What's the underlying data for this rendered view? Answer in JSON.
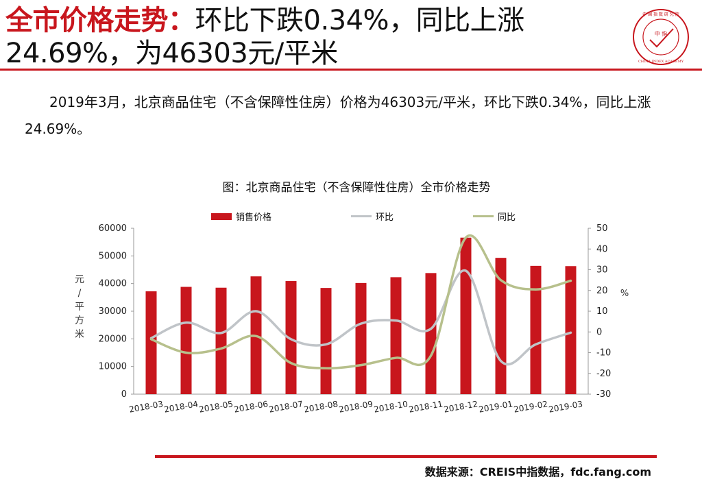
{
  "header": {
    "title_highlight": "全市价格走势：",
    "title_line1_rest": "环比下跌0.34%，同比上涨",
    "title_line2": "24.69%，为46303元/平米"
  },
  "logo": {
    "label": "CHINA INDEX ACADEMY",
    "center_text": "中 指",
    "top_text": "中 国 指 数 研 究 院"
  },
  "summary": {
    "text": "2019年3月，北京商品住宅（不含保障性住房）价格为46303元/平米，环比下跌0.34%，同比上涨24.69%。"
  },
  "source": {
    "text": "数据来源：CREIS中指数据，fdc.fang.com"
  },
  "chart_data": {
    "type": "bar",
    "title": "图：北京商品住宅（不含保障性住房）全市价格走势",
    "categories": [
      "2018-03",
      "2018-04",
      "2018-05",
      "2018-06",
      "2018-07",
      "2018-08",
      "2018-09",
      "2018-10",
      "2018-11",
      "2018-12",
      "2019-01",
      "2019-02",
      "2019-03"
    ],
    "series": [
      {
        "name": "销售价格",
        "type": "bar",
        "axis": "left",
        "color": "#c8161d",
        "values": [
          37200,
          38800,
          38500,
          42600,
          40900,
          38400,
          40200,
          42300,
          43800,
          56600,
          49300,
          46400,
          46303
        ]
      },
      {
        "name": "环比",
        "type": "line",
        "axis": "right",
        "color": "#c0c4c8",
        "values": [
          -3,
          4.5,
          -0.5,
          10,
          -3.5,
          -6,
          4,
          5.5,
          1.5,
          29.5,
          -14,
          -6,
          -0.34
        ]
      },
      {
        "name": "同比",
        "type": "line",
        "axis": "right",
        "color": "#b7c08c",
        "values": [
          -3.5,
          -10,
          -8,
          -2,
          -15,
          -17.5,
          -16,
          -12.5,
          -11.5,
          45.5,
          25,
          20.5,
          24.69
        ]
      }
    ],
    "ylabel_left": "元/平方米",
    "ylabel_right": "%",
    "ylim_left": [
      0,
      60000
    ],
    "yticks_left": [
      0,
      10000,
      20000,
      30000,
      40000,
      50000,
      60000
    ],
    "ylim_right": [
      -30,
      50
    ],
    "yticks_right": [
      -30,
      -20,
      -10,
      0,
      10,
      20,
      30,
      40,
      50
    ],
    "grid": false,
    "legend_position": "top"
  }
}
